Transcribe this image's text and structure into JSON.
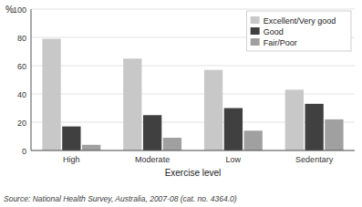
{
  "chart_data": {
    "type": "bar",
    "categories": [
      "High",
      "Moderate",
      "Low",
      "Sedentary"
    ],
    "xlabel": "Exercise level",
    "ylabel": "%",
    "ylim": [
      0,
      100
    ],
    "yticks": [
      0,
      20,
      40,
      60,
      80,
      100
    ],
    "series": [
      {
        "name": "Excellent/Very good",
        "color": "#c8c8c8",
        "values": [
          79,
          65,
          57,
          43
        ]
      },
      {
        "name": "Good",
        "color": "#404040",
        "values": [
          17,
          25,
          30,
          33
        ]
      },
      {
        "name": "Fair/Poor",
        "color": "#a0a0a0",
        "values": [
          4,
          9,
          14,
          22
        ]
      }
    ],
    "grid": true,
    "legend": "upper right",
    "annotations": [
      "Source: National Health Survey, Australia, 2007-08 (cat. no. 4364.0)"
    ]
  }
}
